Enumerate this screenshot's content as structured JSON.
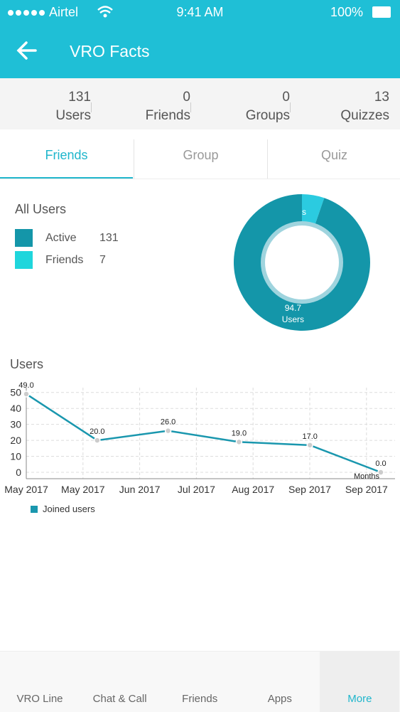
{
  "status_bar": {
    "carrier": "Airtel",
    "time": "9:41 AM",
    "battery": "100%"
  },
  "header": {
    "title": "VRO Facts"
  },
  "stats": [
    {
      "value": 131,
      "label": "Users"
    },
    {
      "value": 0,
      "label": "Friends"
    },
    {
      "value": 0,
      "label": "Groups"
    },
    {
      "value": 13,
      "label": "Quizzes"
    }
  ],
  "tabs": {
    "items": [
      "Friends",
      "Group",
      "Quiz"
    ],
    "active": 0
  },
  "legend": {
    "title": "All Users",
    "items": [
      {
        "name": "Active",
        "value": 131,
        "color": "#1496a9"
      },
      {
        "name": "Friends",
        "value": 7,
        "color": "#1fd6dc"
      }
    ]
  },
  "donut": {
    "type": "pie",
    "labels": [
      "Users",
      "Friends"
    ],
    "values": [
      94.7,
      5.3
    ],
    "colors": [
      "#1496a9",
      "#2bcbe0"
    ]
  },
  "line_chart": {
    "type": "line",
    "title": "Users",
    "x_title": "Months",
    "xtick_labels": [
      "May 2017",
      "May 2017",
      "Jun 2017",
      "Jul 2017",
      "Aug 2017",
      "Sep 2017",
      "Sep 2017"
    ],
    "series": [
      {
        "name": "Joined users",
        "color": "#1a97ae",
        "values": [
          49,
          20,
          26,
          19,
          17,
          0
        ],
        "value_labels": [
          "49.0",
          "20.0",
          "26.0",
          "19.0",
          "17.0",
          "0.0"
        ]
      }
    ],
    "ylim": [
      -4,
      53
    ],
    "yticks": [
      0,
      10,
      20,
      30,
      40,
      50
    ],
    "grid": true
  },
  "nav": {
    "items": [
      "VRO Line",
      "Chat & Call",
      "Friends",
      "Apps",
      "More"
    ],
    "active": 4
  }
}
